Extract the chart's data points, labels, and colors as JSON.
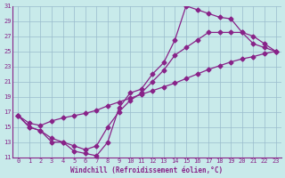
{
  "xlabel": "Windchill (Refroidissement éolien,°C)",
  "xlim": [
    -0.5,
    23.5
  ],
  "ylim": [
    11,
    31
  ],
  "yticks": [
    11,
    13,
    15,
    17,
    19,
    21,
    23,
    25,
    27,
    29,
    31
  ],
  "xticks": [
    0,
    1,
    2,
    3,
    4,
    5,
    6,
    7,
    8,
    9,
    10,
    11,
    12,
    13,
    14,
    15,
    16,
    17,
    18,
    19,
    20,
    21,
    22,
    23
  ],
  "bg_color": "#c8eaea",
  "line_color": "#882288",
  "grid_color": "#99bbcc",
  "line1_x": [
    0,
    1,
    2,
    3,
    4,
    5,
    6,
    7,
    8,
    9,
    10,
    11,
    12,
    13,
    14,
    15,
    16,
    17,
    18,
    19,
    20,
    21,
    22,
    23
  ],
  "line1_y": [
    16.5,
    15.0,
    14.5,
    13.0,
    13.0,
    11.8,
    11.5,
    11.2,
    13.0,
    17.5,
    19.5,
    20.0,
    22.0,
    23.5,
    26.5,
    31.0,
    30.5,
    30.0,
    29.5,
    29.3,
    27.5,
    26.0,
    25.5,
    25.0
  ],
  "line2_x": [
    0,
    1,
    2,
    3,
    4,
    5,
    6,
    7,
    8,
    9,
    10,
    11,
    12,
    13,
    14,
    15,
    16,
    17,
    18,
    19,
    20,
    21,
    22,
    23
  ],
  "line2_y": [
    16.5,
    15.0,
    14.5,
    13.5,
    13.0,
    12.5,
    12.0,
    12.5,
    15.0,
    17.0,
    18.5,
    19.5,
    21.0,
    22.5,
    24.5,
    25.5,
    26.5,
    27.5,
    27.5,
    27.5,
    27.5,
    27.0,
    26.0,
    25.0
  ],
  "line3_x": [
    0,
    1,
    2,
    3,
    4,
    5,
    6,
    7,
    8,
    9,
    10,
    11,
    12,
    13,
    14,
    15,
    16,
    17,
    18,
    19,
    20,
    21,
    22,
    23
  ],
  "line3_y": [
    16.5,
    15.5,
    15.2,
    15.8,
    16.2,
    16.5,
    16.8,
    17.2,
    17.8,
    18.3,
    18.8,
    19.3,
    19.8,
    20.3,
    20.8,
    21.4,
    22.0,
    22.6,
    23.1,
    23.6,
    24.0,
    24.3,
    24.7,
    25.0
  ],
  "marker": "D",
  "markersize": 2.5,
  "linewidth": 0.9
}
